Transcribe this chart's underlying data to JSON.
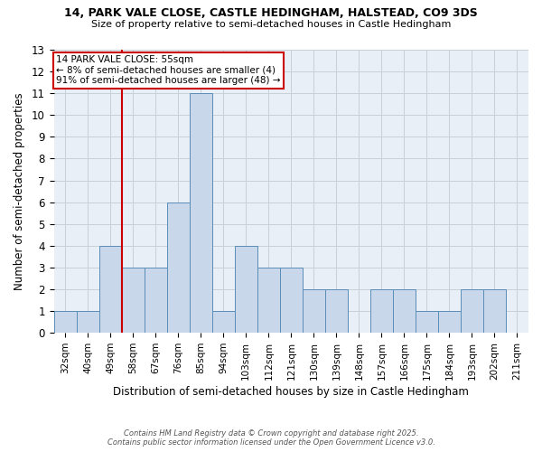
{
  "title1": "14, PARK VALE CLOSE, CASTLE HEDINGHAM, HALSTEAD, CO9 3DS",
  "title2": "Size of property relative to semi-detached houses in Castle Hedingham",
  "xlabel": "Distribution of semi-detached houses by size in Castle Hedingham",
  "ylabel": "Number of semi-detached properties",
  "footnote1": "Contains HM Land Registry data © Crown copyright and database right 2025.",
  "footnote2": "Contains public sector information licensed under the Open Government Licence v3.0.",
  "annotation_line1": "14 PARK VALE CLOSE: 55sqm",
  "annotation_line2": "← 8% of semi-detached houses are smaller (4)",
  "annotation_line3": "91% of semi-detached houses are larger (48) →",
  "categories": [
    "32sqm",
    "40sqm",
    "49sqm",
    "58sqm",
    "67sqm",
    "76sqm",
    "85sqm",
    "94sqm",
    "103sqm",
    "112sqm",
    "121sqm",
    "130sqm",
    "139sqm",
    "148sqm",
    "157sqm",
    "166sqm",
    "175sqm",
    "184sqm",
    "193sqm",
    "202sqm",
    "211sqm"
  ],
  "heights": [
    1,
    1,
    4,
    3,
    3,
    6,
    11,
    1,
    4,
    3,
    3,
    2,
    2,
    0,
    2,
    2,
    1,
    1,
    2,
    2,
    0
  ],
  "red_line_x": 2.5,
  "bar_color": "#c8d8ea",
  "bar_edge_color": "#5b8db8",
  "grid_color": "#c8d0d8",
  "plot_bg_color": "#e8eff6",
  "fig_bg_color": "#ffffff",
  "red_line_color": "#cc0000",
  "annotation_box_edge": "#cc0000",
  "ylim": [
    0,
    13
  ],
  "yticks": [
    0,
    1,
    2,
    3,
    4,
    5,
    6,
    7,
    8,
    9,
    10,
    11,
    12,
    13
  ]
}
